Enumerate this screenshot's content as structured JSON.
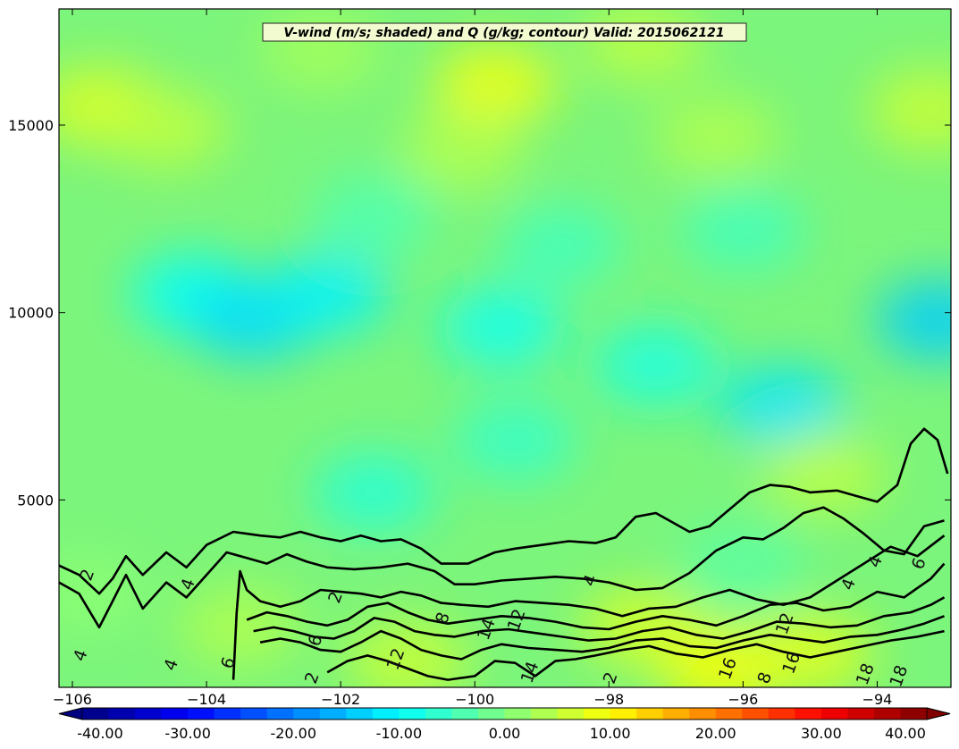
{
  "chart_data": {
    "type": "heatmap",
    "title": "V-wind (m/s; shaded) and Q (g/kg; contour) Valid: 2015062121",
    "xlabel": "",
    "ylabel": "",
    "xlim": [
      -106.2,
      -92.9
    ],
    "ylim": [
      0,
      18100
    ],
    "x_ticks": [
      -106,
      -104,
      -102,
      -100,
      -98,
      -96,
      -94
    ],
    "x_tick_labels": [
      "−106",
      "−104",
      "−102",
      "−100",
      "−98",
      "−96",
      "−94"
    ],
    "y_ticks": [
      5000,
      10000,
      15000
    ],
    "y_tick_labels": [
      "5000",
      "10000",
      "15000"
    ],
    "colorbar": {
      "min": -40,
      "max": 40,
      "step": 2.5,
      "extend": "both",
      "tick_values": [
        -40,
        -30,
        -20,
        -10,
        0,
        10,
        20,
        30,
        40
      ],
      "tick_labels": [
        "-40.00",
        "-30.00",
        "-20.00",
        "-10.00",
        "0.00",
        "10.00",
        "20.00",
        "30.00",
        "40.00"
      ]
    },
    "shaded_regions": [
      {
        "x": -105.6,
        "y": 15500,
        "v": 7.5
      },
      {
        "x": -99.7,
        "y": 16100,
        "v": 9
      },
      {
        "x": -104.6,
        "y": 14900,
        "v": 5
      },
      {
        "x": -100.2,
        "y": 14300,
        "v": 4
      },
      {
        "x": -96.4,
        "y": 14700,
        "v": 4
      },
      {
        "x": -93.2,
        "y": 15400,
        "v": 6
      },
      {
        "x": -102.3,
        "y": 17000,
        "v": 3
      },
      {
        "x": -97.5,
        "y": 17200,
        "v": 5
      },
      {
        "x": -104.2,
        "y": 10500,
        "v": -10
      },
      {
        "x": -103.3,
        "y": 9800,
        "v": -13
      },
      {
        "x": -102.2,
        "y": 10500,
        "v": -11
      },
      {
        "x": -99.6,
        "y": 9600,
        "v": -9
      },
      {
        "x": -97.3,
        "y": 8600,
        "v": -8
      },
      {
        "x": -95.4,
        "y": 7500,
        "v": -12
      },
      {
        "x": -93.1,
        "y": 9800,
        "v": -14
      },
      {
        "x": -98.7,
        "y": 11800,
        "v": -5
      },
      {
        "x": -101.5,
        "y": 12600,
        "v": -4
      },
      {
        "x": -96.0,
        "y": 12200,
        "v": -5
      },
      {
        "x": -101.5,
        "y": 5200,
        "v": -7
      },
      {
        "x": -99.4,
        "y": 6600,
        "v": -6
      },
      {
        "x": -96.0,
        "y": 3300,
        "v": -3
      },
      {
        "x": -97.5,
        "y": 1600,
        "v": 7
      },
      {
        "x": -96.3,
        "y": 500,
        "v": 10
      },
      {
        "x": -95.0,
        "y": 900,
        "v": 8
      },
      {
        "x": -101.0,
        "y": 700,
        "v": 6
      },
      {
        "x": -103.5,
        "y": 1600,
        "v": 4
      },
      {
        "x": -94.8,
        "y": 5700,
        "v": 5
      },
      {
        "x": -105.8,
        "y": 2500,
        "v": 1
      }
    ],
    "contours": [
      {
        "level": 2,
        "points": [
          [
            -106.2,
            3250
          ],
          [
            -105.9,
            3000
          ],
          [
            -105.6,
            2500
          ],
          [
            -105.4,
            2900
          ],
          [
            -105.2,
            3500
          ],
          [
            -104.95,
            3000
          ],
          [
            -104.6,
            3600
          ],
          [
            -104.3,
            3200
          ],
          [
            -104.0,
            3800
          ],
          [
            -103.6,
            4150
          ],
          [
            -103.2,
            4050
          ],
          [
            -102.9,
            4000
          ],
          [
            -102.6,
            4150
          ],
          [
            -102.3,
            4000
          ],
          [
            -102.0,
            3900
          ],
          [
            -101.7,
            4050
          ],
          [
            -101.4,
            3900
          ],
          [
            -101.1,
            3950
          ],
          [
            -100.8,
            3700
          ],
          [
            -100.5,
            3300
          ],
          [
            -100.1,
            3300
          ],
          [
            -99.7,
            3600
          ],
          [
            -99.4,
            3700
          ],
          [
            -99.0,
            3800
          ],
          [
            -98.6,
            3900
          ],
          [
            -98.2,
            3850
          ],
          [
            -97.9,
            4000
          ],
          [
            -97.6,
            4550
          ],
          [
            -97.3,
            4650
          ],
          [
            -97.1,
            4450
          ],
          [
            -96.8,
            4150
          ],
          [
            -96.5,
            4300
          ],
          [
            -96.2,
            4750
          ],
          [
            -95.9,
            5200
          ],
          [
            -95.6,
            5400
          ],
          [
            -95.3,
            5350
          ],
          [
            -95.0,
            5200
          ],
          [
            -94.6,
            5250
          ],
          [
            -94.3,
            5100
          ],
          [
            -94.0,
            4950
          ],
          [
            -93.7,
            5400
          ],
          [
            -93.5,
            6500
          ],
          [
            -93.3,
            6900
          ],
          [
            -93.1,
            6600
          ],
          [
            -92.95,
            5700
          ]
        ]
      },
      {
        "level": 4,
        "points": [
          [
            -106.2,
            2800
          ],
          [
            -105.9,
            2500
          ],
          [
            -105.6,
            1600
          ],
          [
            -105.4,
            2300
          ],
          [
            -105.2,
            3000
          ],
          [
            -104.95,
            2100
          ],
          [
            -104.6,
            2800
          ],
          [
            -104.3,
            2400
          ],
          [
            -104.0,
            3000
          ],
          [
            -103.7,
            3600
          ],
          [
            -103.4,
            3450
          ],
          [
            -103.1,
            3300
          ],
          [
            -102.8,
            3550
          ],
          [
            -102.5,
            3350
          ],
          [
            -102.2,
            3200
          ],
          [
            -101.8,
            3150
          ],
          [
            -101.4,
            3200
          ],
          [
            -101.0,
            3300
          ],
          [
            -100.6,
            3100
          ],
          [
            -100.3,
            2750
          ],
          [
            -100.0,
            2750
          ],
          [
            -99.6,
            2850
          ],
          [
            -99.2,
            2900
          ],
          [
            -98.8,
            2950
          ],
          [
            -98.4,
            2900
          ],
          [
            -98.0,
            2800
          ],
          [
            -97.6,
            2600
          ],
          [
            -97.2,
            2650
          ],
          [
            -96.8,
            3050
          ],
          [
            -96.4,
            3650
          ],
          [
            -96.0,
            4000
          ],
          [
            -95.7,
            3950
          ],
          [
            -95.4,
            4250
          ],
          [
            -95.1,
            4650
          ],
          [
            -94.8,
            4800
          ],
          [
            -94.5,
            4500
          ],
          [
            -94.2,
            4100
          ],
          [
            -93.9,
            3650
          ],
          [
            -93.6,
            3550
          ],
          [
            -93.3,
            4300
          ],
          [
            -93.0,
            4450
          ]
        ]
      },
      {
        "level": 6,
        "points": [
          [
            -103.6,
            200
          ],
          [
            -103.55,
            2000
          ],
          [
            -103.5,
            3100
          ],
          [
            -103.4,
            2600
          ],
          [
            -103.2,
            2300
          ],
          [
            -102.9,
            2150
          ],
          [
            -102.6,
            2300
          ],
          [
            -102.3,
            2600
          ],
          [
            -102.0,
            2550
          ],
          [
            -101.7,
            2500
          ],
          [
            -101.4,
            2400
          ],
          [
            -101.1,
            2550
          ],
          [
            -100.8,
            2450
          ],
          [
            -100.5,
            2250
          ],
          [
            -100.2,
            2200
          ],
          [
            -99.8,
            2150
          ],
          [
            -99.4,
            2300
          ],
          [
            -99.0,
            2250
          ],
          [
            -98.6,
            2200
          ],
          [
            -98.2,
            2100
          ],
          [
            -97.8,
            1900
          ],
          [
            -97.4,
            2100
          ],
          [
            -97.0,
            2150
          ],
          [
            -96.6,
            2400
          ],
          [
            -96.2,
            2600
          ],
          [
            -95.8,
            2350
          ],
          [
            -95.4,
            2200
          ],
          [
            -95.0,
            2400
          ],
          [
            -94.6,
            2850
          ],
          [
            -94.2,
            3300
          ],
          [
            -93.8,
            3750
          ],
          [
            -93.4,
            3500
          ],
          [
            -93.0,
            4050
          ]
        ]
      },
      {
        "level": 8,
        "points": [
          [
            -103.4,
            1800
          ],
          [
            -103.1,
            2000
          ],
          [
            -102.8,
            1900
          ],
          [
            -102.5,
            1750
          ],
          [
            -102.2,
            1650
          ],
          [
            -101.9,
            1800
          ],
          [
            -101.6,
            2150
          ],
          [
            -101.3,
            2250
          ],
          [
            -101.0,
            2000
          ],
          [
            -100.7,
            1800
          ],
          [
            -100.4,
            1700
          ],
          [
            -100.0,
            1800
          ],
          [
            -99.6,
            1900
          ],
          [
            -99.2,
            1850
          ],
          [
            -98.8,
            1750
          ],
          [
            -98.4,
            1600
          ],
          [
            -98.0,
            1550
          ],
          [
            -97.6,
            1750
          ],
          [
            -97.2,
            1900
          ],
          [
            -96.8,
            1800
          ],
          [
            -96.4,
            1650
          ],
          [
            -96.0,
            1900
          ],
          [
            -95.6,
            2200
          ],
          [
            -95.2,
            2250
          ],
          [
            -94.8,
            2050
          ],
          [
            -94.4,
            2150
          ],
          [
            -94.0,
            2550
          ],
          [
            -93.6,
            2400
          ],
          [
            -93.2,
            2900
          ],
          [
            -93.0,
            3300
          ]
        ]
      },
      {
        "level": 10,
        "points": [
          [
            -103.3,
            1500
          ],
          [
            -103.0,
            1600
          ],
          [
            -102.7,
            1500
          ],
          [
            -102.4,
            1350
          ],
          [
            -102.1,
            1300
          ],
          [
            -101.8,
            1500
          ],
          [
            -101.5,
            1850
          ],
          [
            -101.2,
            1750
          ],
          [
            -100.9,
            1500
          ],
          [
            -100.6,
            1400
          ],
          [
            -100.3,
            1350
          ],
          [
            -99.9,
            1500
          ],
          [
            -99.5,
            1550
          ],
          [
            -99.1,
            1450
          ],
          [
            -98.7,
            1350
          ],
          [
            -98.3,
            1250
          ],
          [
            -97.9,
            1300
          ],
          [
            -97.5,
            1500
          ],
          [
            -97.1,
            1600
          ],
          [
            -96.7,
            1400
          ],
          [
            -96.3,
            1300
          ],
          [
            -95.9,
            1500
          ],
          [
            -95.5,
            1750
          ],
          [
            -95.1,
            1700
          ],
          [
            -94.7,
            1600
          ],
          [
            -94.3,
            1650
          ],
          [
            -93.9,
            1900
          ],
          [
            -93.5,
            2000
          ],
          [
            -93.2,
            2200
          ],
          [
            -93.0,
            2400
          ]
        ]
      },
      {
        "level": 12,
        "points": [
          [
            -103.2,
            1200
          ],
          [
            -102.9,
            1300
          ],
          [
            -102.6,
            1200
          ],
          [
            -102.3,
            1000
          ],
          [
            -102.0,
            950
          ],
          [
            -101.7,
            1200
          ],
          [
            -101.4,
            1500
          ],
          [
            -101.1,
            1300
          ],
          [
            -100.8,
            1000
          ],
          [
            -100.5,
            850
          ],
          [
            -100.2,
            750
          ],
          [
            -99.9,
            1000
          ],
          [
            -99.6,
            1150
          ],
          [
            -99.2,
            1050
          ],
          [
            -98.8,
            1000
          ],
          [
            -98.4,
            950
          ],
          [
            -98.0,
            1050
          ],
          [
            -97.6,
            1250
          ],
          [
            -97.2,
            1300
          ],
          [
            -96.8,
            1100
          ],
          [
            -96.4,
            1050
          ],
          [
            -96.0,
            1250
          ],
          [
            -95.6,
            1400
          ],
          [
            -95.2,
            1300
          ],
          [
            -94.8,
            1200
          ],
          [
            -94.4,
            1350
          ],
          [
            -94.0,
            1400
          ],
          [
            -93.6,
            1550
          ],
          [
            -93.3,
            1700
          ],
          [
            -93.0,
            1900
          ]
        ]
      },
      {
        "level": 14,
        "points": [
          [
            -102.2,
            400
          ],
          [
            -101.9,
            700
          ],
          [
            -101.6,
            850
          ],
          [
            -101.3,
            700
          ],
          [
            -101.0,
            500
          ],
          [
            -100.7,
            300
          ],
          [
            -100.4,
            200
          ],
          [
            -100.0,
            300
          ],
          [
            -99.7,
            700
          ],
          [
            -99.4,
            650
          ],
          [
            -99.1,
            300
          ],
          [
            -98.8,
            700
          ],
          [
            -98.5,
            750
          ],
          [
            -98.2,
            850
          ],
          [
            -97.8,
            1000
          ],
          [
            -97.4,
            1100
          ],
          [
            -97.0,
            900
          ],
          [
            -96.6,
            800
          ],
          [
            -96.2,
            1000
          ],
          [
            -95.8,
            1150
          ],
          [
            -95.4,
            950
          ],
          [
            -95.0,
            800
          ],
          [
            -94.6,
            950
          ],
          [
            -94.2,
            1100
          ],
          [
            -93.8,
            1250
          ],
          [
            -93.4,
            1350
          ],
          [
            -93.0,
            1500
          ]
        ]
      }
    ],
    "contour_labels": [
      {
        "x": -105.7,
        "y": 2950,
        "text": "2"
      },
      {
        "x": -104.2,
        "y": 2700,
        "text": "4"
      },
      {
        "x": -105.8,
        "y": 800,
        "text": "4"
      },
      {
        "x": -104.45,
        "y": 550,
        "text": "4"
      },
      {
        "x": -103.6,
        "y": 600,
        "text": "6"
      },
      {
        "x": -102.0,
        "y": 2350,
        "text": "2"
      },
      {
        "x": -102.3,
        "y": 1200,
        "text": "6"
      },
      {
        "x": -102.35,
        "y": 200,
        "text": "2"
      },
      {
        "x": -100.4,
        "y": 1800,
        "text": "8"
      },
      {
        "x": -101.1,
        "y": 700,
        "text": "12"
      },
      {
        "x": -99.75,
        "y": 1500,
        "text": "14"
      },
      {
        "x": -99.3,
        "y": 1750,
        "text": "12"
      },
      {
        "x": -99.1,
        "y": 350,
        "text": "14"
      },
      {
        "x": -98.2,
        "y": 2800,
        "text": "4"
      },
      {
        "x": -97.9,
        "y": 200,
        "text": "2"
      },
      {
        "x": -96.15,
        "y": 450,
        "text": "16"
      },
      {
        "x": -95.6,
        "y": 200,
        "text": "8"
      },
      {
        "x": -95.3,
        "y": 1650,
        "text": "12"
      },
      {
        "x": -95.2,
        "y": 600,
        "text": "16"
      },
      {
        "x": -94.35,
        "y": 2700,
        "text": "4"
      },
      {
        "x": -93.95,
        "y": 3300,
        "text": "4"
      },
      {
        "x": -93.3,
        "y": 3250,
        "text": "6"
      },
      {
        "x": -94.1,
        "y": 300,
        "text": "18"
      },
      {
        "x": -93.6,
        "y": 250,
        "text": "18"
      }
    ]
  }
}
